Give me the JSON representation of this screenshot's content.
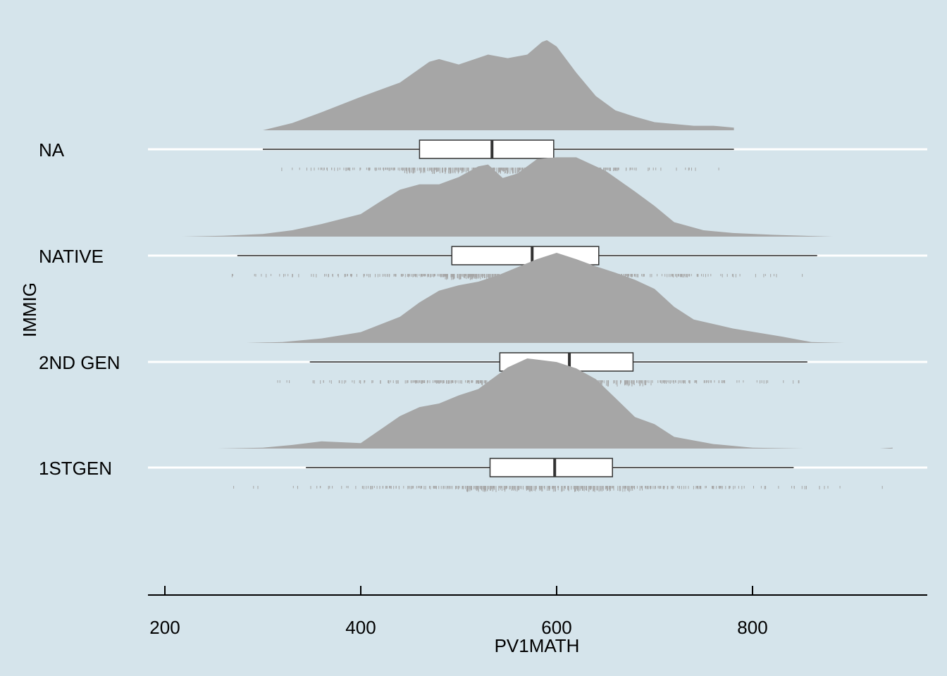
{
  "chart_data": {
    "type": "raincloud",
    "xlabel": "PV1MATH",
    "ylabel": "IMMIG",
    "xlim": [
      190,
      980
    ],
    "x_ticks": [
      200,
      400,
      600,
      800
    ],
    "grid": "horizontal lines at each category only",
    "background": "#d5e4eb",
    "density_color": "#a6a6a6",
    "series": [
      {
        "category": "NA",
        "min": 300,
        "q1": 460,
        "median": 534,
        "q3": 597,
        "max": 781,
        "rug_range": [
          300,
          781
        ],
        "density": {
          "x": [
            300,
            330,
            360,
            400,
            440,
            470,
            480,
            500,
            530,
            550,
            570,
            585,
            590,
            600,
            620,
            640,
            660,
            680,
            700,
            740,
            760,
            781
          ],
          "y": [
            0.0,
            0.08,
            0.2,
            0.37,
            0.53,
            0.76,
            0.79,
            0.73,
            0.84,
            0.8,
            0.84,
            0.98,
            1.0,
            0.93,
            0.64,
            0.38,
            0.22,
            0.15,
            0.09,
            0.05,
            0.05,
            0.03
          ]
        }
      },
      {
        "category": "NATIVE",
        "min": 274,
        "q1": 493,
        "median": 575,
        "q3": 643,
        "max": 866,
        "rug_range": [
          218,
          882
        ],
        "density": {
          "x": [
            218,
            260,
            300,
            330,
            360,
            400,
            420,
            440,
            460,
            480,
            500,
            520,
            530,
            545,
            560,
            580,
            600,
            620,
            650,
            680,
            700,
            720,
            750,
            780,
            820,
            882
          ],
          "y": [
            0.0,
            0.01,
            0.03,
            0.07,
            0.14,
            0.25,
            0.39,
            0.52,
            0.58,
            0.58,
            0.66,
            0.78,
            0.8,
            0.65,
            0.7,
            0.86,
            0.88,
            0.88,
            0.73,
            0.5,
            0.34,
            0.16,
            0.07,
            0.04,
            0.02,
            0.0
          ]
        }
      },
      {
        "category": "2ND GEN",
        "min": 348,
        "q1": 542,
        "median": 613,
        "q3": 678,
        "max": 856,
        "rug_range": [
          283,
          894
        ],
        "density": {
          "x": [
            283,
            320,
            360,
            400,
            440,
            460,
            480,
            500,
            520,
            540,
            560,
            580,
            600,
            620,
            640,
            660,
            680,
            700,
            720,
            740,
            780,
            830,
            860,
            894
          ],
          "y": [
            0.0,
            0.01,
            0.05,
            0.12,
            0.29,
            0.45,
            0.58,
            0.64,
            0.68,
            0.75,
            0.84,
            0.93,
            1.0,
            0.93,
            0.85,
            0.78,
            0.7,
            0.6,
            0.4,
            0.26,
            0.16,
            0.07,
            0.01,
            0.0
          ]
        }
      },
      {
        "category": "1STGEN",
        "min": 344,
        "q1": 532,
        "median": 598,
        "q3": 657,
        "max": 842,
        "rug_range": [
          254,
          943
        ],
        "density": {
          "x": [
            254,
            300,
            330,
            360,
            400,
            440,
            460,
            480,
            500,
            520,
            550,
            570,
            600,
            620,
            640,
            660,
            680,
            700,
            720,
            760,
            800,
            852,
            930,
            943
          ],
          "y": [
            0.0,
            0.01,
            0.04,
            0.08,
            0.06,
            0.36,
            0.46,
            0.5,
            0.59,
            0.66,
            0.9,
            1.0,
            0.96,
            0.89,
            0.77,
            0.56,
            0.35,
            0.27,
            0.13,
            0.05,
            0.01,
            0.0,
            0.0,
            0.01
          ]
        }
      }
    ]
  }
}
